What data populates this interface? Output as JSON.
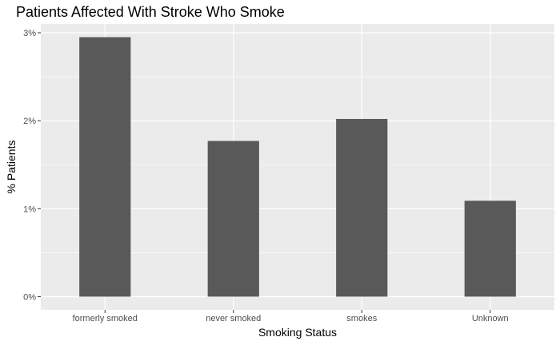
{
  "chart_data": {
    "type": "bar",
    "title": "Patients Affected With Stroke Who Smoke",
    "xlabel": "Smoking Status",
    "ylabel": "% Patients",
    "categories": [
      "formerly smoked",
      "never smoked",
      "smokes",
      "Unknown"
    ],
    "values": [
      2.95,
      1.77,
      2.02,
      1.09
    ],
    "yticks": [
      0,
      1,
      2,
      3
    ],
    "ytick_labels": [
      "0%",
      "1%",
      "2%",
      "3%"
    ],
    "ylim": [
      -0.15,
      3.1
    ],
    "grid": true,
    "legend": "none",
    "colors": {
      "bar": "#595959",
      "panel": "#ebebeb",
      "gridline": "#ffffff",
      "tick": "#333333"
    }
  }
}
